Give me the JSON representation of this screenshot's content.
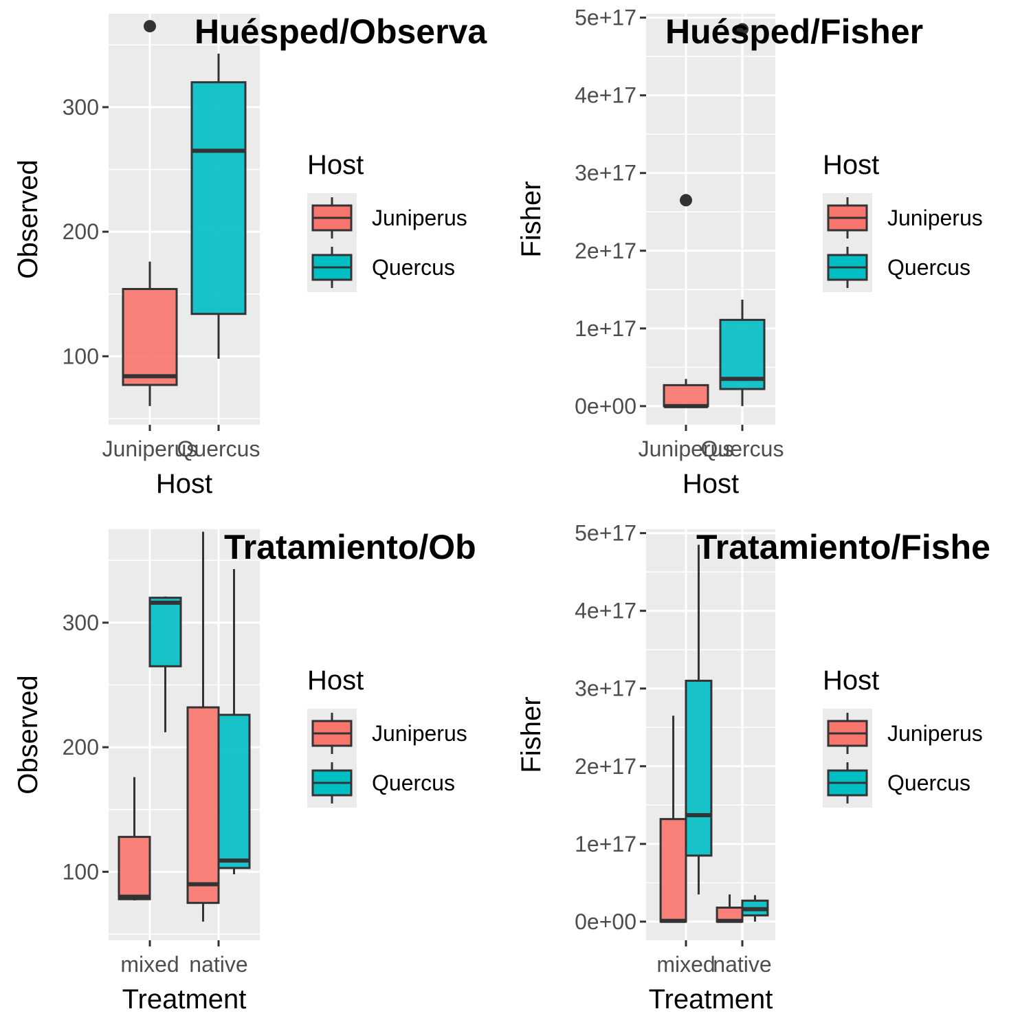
{
  "colors": {
    "panel_bg": "#EBEBEB",
    "grid": "#FFFFFF",
    "outline": "#333333",
    "Juniperus": "#F8766D",
    "Quercus": "#00BFC4"
  },
  "legend": {
    "title": "Host",
    "items": [
      {
        "label": "Juniperus",
        "color": "#F8766D"
      },
      {
        "label": "Quercus",
        "color": "#00BFC4"
      }
    ]
  },
  "chart_data": [
    {
      "type": "boxplot",
      "title": "Huésped/Observa",
      "xlabel": "Host",
      "ylabel": "Observed",
      "categories": [
        "Juniperus",
        "Quercus"
      ],
      "ylim": [
        45,
        375
      ],
      "yticks": [
        100,
        200,
        300
      ],
      "ytick_labels": [
        "100",
        "200",
        "300"
      ],
      "legend_position": "right",
      "boxes": [
        {
          "category": "Juniperus",
          "group": "Juniperus",
          "min": 60,
          "q1": 77,
          "median": 84,
          "q3": 154,
          "max": 176,
          "outliers": [
            365
          ]
        },
        {
          "category": "Quercus",
          "group": "Quercus",
          "min": 98,
          "q1": 134,
          "median": 265,
          "q3": 320,
          "max": 343,
          "outliers": []
        }
      ]
    },
    {
      "type": "boxplot",
      "title": "Huésped/Fisher",
      "xlabel": "Host",
      "ylabel": "Fisher",
      "categories": [
        "Juniperus",
        "Quercus"
      ],
      "ylim": [
        -2.4e+16,
        5.05e+17
      ],
      "yticks": [
        0,
        1e+17,
        2e+17,
        3e+17,
        4e+17,
        5e+17
      ],
      "ytick_labels": [
        "0e+00",
        "1e+17",
        "2e+17",
        "3e+17",
        "4e+17",
        "5e+17"
      ],
      "legend_position": "right",
      "boxes": [
        {
          "category": "Juniperus",
          "group": "Juniperus",
          "min": 0,
          "q1": 0,
          "median": 0,
          "q3": 2.7e+16,
          "max": 3.5e+16,
          "outliers": [
            2.65e+17
          ]
        },
        {
          "category": "Quercus",
          "group": "Quercus",
          "min": 0,
          "q1": 2.2e+16,
          "median": 3.5e+16,
          "q3": 1.11e+17,
          "max": 1.37e+17,
          "outliers": [
            4.85e+17
          ]
        }
      ]
    },
    {
      "type": "boxplot",
      "title": "Tratamiento/Ob",
      "xlabel": "Treatment",
      "ylabel": "Observed",
      "categories": [
        "mixed",
        "native"
      ],
      "ylim": [
        45,
        375
      ],
      "yticks": [
        100,
        200,
        300
      ],
      "ytick_labels": [
        "100",
        "200",
        "300"
      ],
      "legend_position": "right",
      "boxes": [
        {
          "category": "mixed",
          "group": "Juniperus",
          "min": 77,
          "q1": 78,
          "median": 80,
          "q3": 128,
          "max": 176,
          "outliers": []
        },
        {
          "category": "mixed",
          "group": "Quercus",
          "min": 212,
          "q1": 265,
          "median": 316,
          "q3": 320,
          "max": 321,
          "outliers": []
        },
        {
          "category": "native",
          "group": "Juniperus",
          "min": 60,
          "q1": 75,
          "median": 90,
          "q3": 232,
          "max": 373,
          "outliers": []
        },
        {
          "category": "native",
          "group": "Quercus",
          "min": 98,
          "q1": 103,
          "median": 109,
          "q3": 226,
          "max": 343,
          "outliers": []
        }
      ]
    },
    {
      "type": "boxplot",
      "title": "Tratamiento/Fishe",
      "xlabel": "Treatment",
      "ylabel": "Fisher",
      "categories": [
        "mixed",
        "native"
      ],
      "ylim": [
        -2.4e+16,
        5.05e+17
      ],
      "yticks": [
        0,
        1e+17,
        2e+17,
        3e+17,
        4e+17,
        5e+17
      ],
      "ytick_labels": [
        "0e+00",
        "1e+17",
        "2e+17",
        "3e+17",
        "4e+17",
        "5e+17"
      ],
      "legend_position": "right",
      "boxes": [
        {
          "category": "mixed",
          "group": "Juniperus",
          "min": 0,
          "q1": 0,
          "median": 1000000000000000.0,
          "q3": 1.32e+17,
          "max": 2.65e+17,
          "outliers": []
        },
        {
          "category": "mixed",
          "group": "Quercus",
          "min": 3.5e+16,
          "q1": 8.5e+16,
          "median": 1.37e+17,
          "q3": 3.1e+17,
          "max": 4.85e+17,
          "outliers": []
        },
        {
          "category": "native",
          "group": "Juniperus",
          "min": 0,
          "q1": 0,
          "median": 1000000000000000.0,
          "q3": 1.8e+16,
          "max": 3.5e+16,
          "outliers": []
        },
        {
          "category": "native",
          "group": "Quercus",
          "min": 0,
          "q1": 8000000000000000.0,
          "median": 1.6e+16,
          "q3": 2.7e+16,
          "max": 3.4e+16,
          "outliers": []
        }
      ]
    }
  ]
}
